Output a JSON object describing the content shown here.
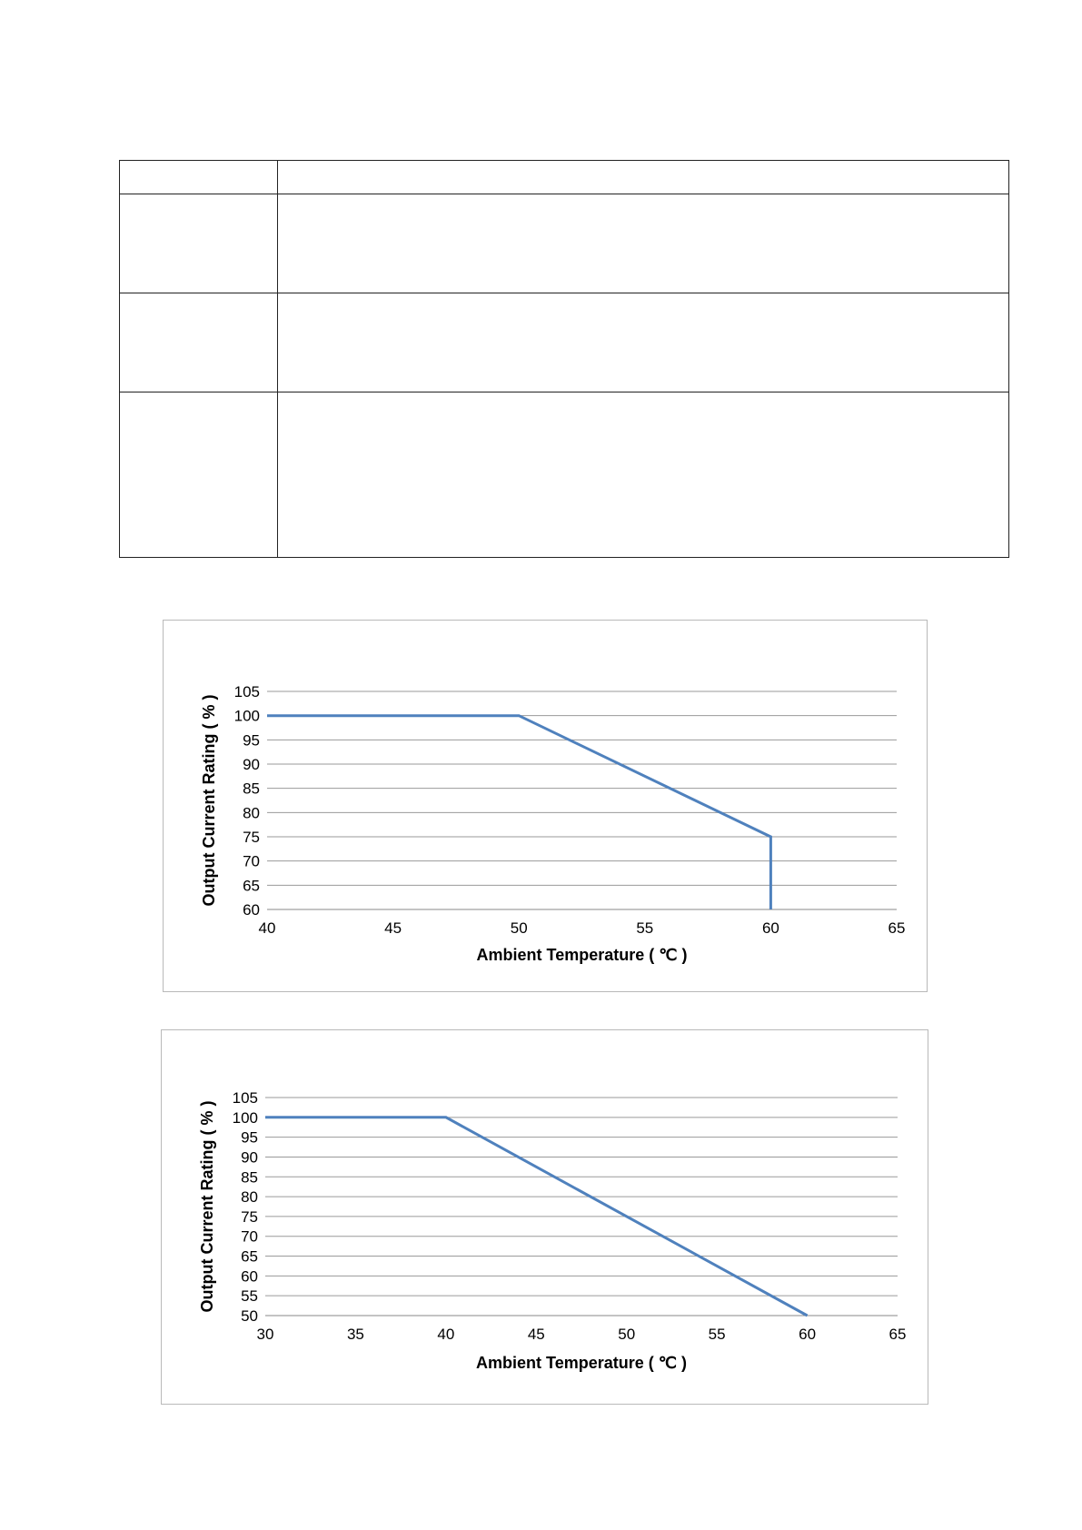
{
  "table": {
    "rows": [
      [
        "",
        ""
      ],
      [
        "",
        ""
      ],
      [
        "",
        ""
      ],
      [
        "",
        ""
      ]
    ]
  },
  "chart_data": [
    {
      "type": "line",
      "xlabel": "Ambient Temperature ( ℃ )",
      "ylabel": "Output Current Rating ( % )",
      "xlim": [
        40,
        65
      ],
      "ylim": [
        60,
        105
      ],
      "xticks": [
        40,
        45,
        50,
        55,
        60,
        65
      ],
      "yticks": [
        60,
        65,
        70,
        75,
        80,
        85,
        90,
        95,
        100,
        105
      ],
      "grid": "horizontal",
      "color": "#4f81bd",
      "series": [
        {
          "x": [
            40,
            50,
            60,
            60
          ],
          "y": [
            100,
            100,
            75,
            60
          ]
        }
      ]
    },
    {
      "type": "line",
      "xlabel": "Ambient Temperature ( ℃ )",
      "ylabel": "Output Current Rating ( % )",
      "xlim": [
        30,
        65
      ],
      "ylim": [
        50,
        105
      ],
      "xticks": [
        30,
        35,
        40,
        45,
        50,
        55,
        60,
        65
      ],
      "yticks": [
        50,
        55,
        60,
        65,
        70,
        75,
        80,
        85,
        90,
        95,
        100,
        105
      ],
      "grid": "horizontal",
      "color": "#4f81bd",
      "series": [
        {
          "x": [
            30,
            40,
            60
          ],
          "y": [
            100,
            100,
            50
          ]
        }
      ]
    }
  ]
}
